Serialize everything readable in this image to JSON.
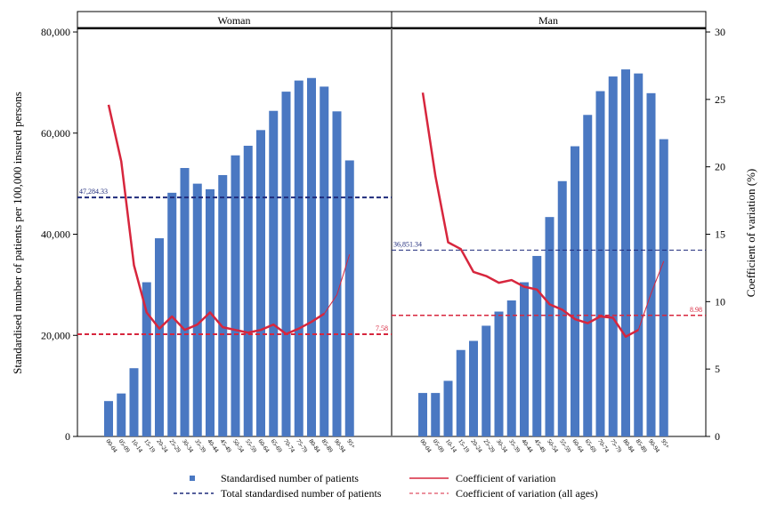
{
  "chart_data": [
    {
      "type": "bar",
      "panel": "Woman",
      "categories": [
        "00-04",
        "05-09",
        "10-14",
        "15-19",
        "20-24",
        "25-29",
        "30-34",
        "35-39",
        "40-44",
        "45-49",
        "50-54",
        "55-59",
        "60-64",
        "65-69",
        "70-74",
        "75-79",
        "80-84",
        "85-89",
        "90-94",
        "95+"
      ],
      "series": [
        {
          "name": "Standardised number of patients",
          "axis": "left",
          "kind": "bar",
          "values": [
            7000,
            8500,
            13500,
            30500,
            39200,
            48200,
            53100,
            50000,
            48900,
            51700,
            55600,
            57500,
            60600,
            64400,
            68200,
            70400,
            70900,
            69200,
            64300,
            54600
          ]
        },
        {
          "name": "Coefficient of variation",
          "axis": "right",
          "kind": "line",
          "values": [
            24.6,
            20.4,
            12.7,
            9.2,
            8.0,
            8.9,
            7.9,
            8.3,
            9.2,
            8.1,
            7.9,
            7.7,
            7.9,
            8.3,
            7.6,
            8.0,
            8.5,
            9.1,
            10.5,
            13.5
          ]
        }
      ],
      "reference_lines": [
        {
          "name": "Total standardised number of patients",
          "axis": "left",
          "value": 47284.33,
          "label": "47,284.33"
        },
        {
          "name": "Coefficient of variation (all ages)",
          "axis": "right",
          "value": 7.58,
          "label": "7.58"
        }
      ]
    },
    {
      "type": "bar",
      "panel": "Man",
      "categories": [
        "00-04",
        "05-09",
        "10-14",
        "15-19",
        "20-24",
        "25-29",
        "30-34",
        "35-39",
        "40-44",
        "45-49",
        "50-54",
        "55-59",
        "60-64",
        "65-69",
        "70-74",
        "75-79",
        "80-84",
        "85-89",
        "90-94",
        "95+"
      ],
      "series": [
        {
          "name": "Standardised number of patients",
          "axis": "left",
          "kind": "bar",
          "values": [
            8600,
            8600,
            11000,
            17100,
            18900,
            21900,
            24700,
            26900,
            30500,
            35700,
            43400,
            50500,
            57400,
            63600,
            68300,
            71200,
            72600,
            71800,
            67900,
            58800
          ]
        },
        {
          "name": "Coefficient of variation",
          "axis": "right",
          "kind": "line",
          "values": [
            25.5,
            19.3,
            14.4,
            13.9,
            12.2,
            11.9,
            11.4,
            11.6,
            11.1,
            10.9,
            9.8,
            9.4,
            8.7,
            8.4,
            8.9,
            8.8,
            7.4,
            7.9,
            10.6,
            13.0
          ]
        }
      ],
      "reference_lines": [
        {
          "name": "Total standardised number of patients",
          "axis": "left",
          "value": 36851.34,
          "label": "36,851.34"
        },
        {
          "name": "Coefficient of variation (all ages)",
          "axis": "right",
          "value": 8.98,
          "label": "8.98"
        }
      ]
    }
  ],
  "axes": {
    "ylabel_left": "Standardised number of patients per 100,000 insured persons",
    "ylabel_right": "Coefficient of variation (%)",
    "ylim_left": [
      0,
      80000
    ],
    "ylim_right": [
      0,
      30
    ],
    "ticks_left": [
      "0",
      "20,000",
      "40,000",
      "60,000",
      "80,000"
    ],
    "ticks_left_values": [
      0,
      20000,
      40000,
      60000,
      80000
    ],
    "ticks_right": [
      "0",
      "5",
      "10",
      "15",
      "20",
      "25",
      "30"
    ],
    "ticks_right_values": [
      0,
      5,
      10,
      15,
      20,
      25,
      30
    ]
  },
  "legend": {
    "placement": "bottom",
    "items": [
      {
        "label": "Standardised number of patients",
        "style": "square",
        "color": "#4a78c2"
      },
      {
        "label": "Coefficient of variation",
        "style": "solid-line",
        "color": "#d7263d"
      },
      {
        "label": "Total standardised number of patients",
        "style": "dashed-line",
        "color": "#1f2b7b"
      },
      {
        "label": "Coefficient of variation (all ages)",
        "style": "dashed-line",
        "color": "#d7263d"
      }
    ]
  },
  "colors": {
    "bar": "#4a78c2",
    "cv_line": "#d7263d",
    "total_line": "#1f2b7b",
    "cv_all_line": "#d7263d"
  }
}
